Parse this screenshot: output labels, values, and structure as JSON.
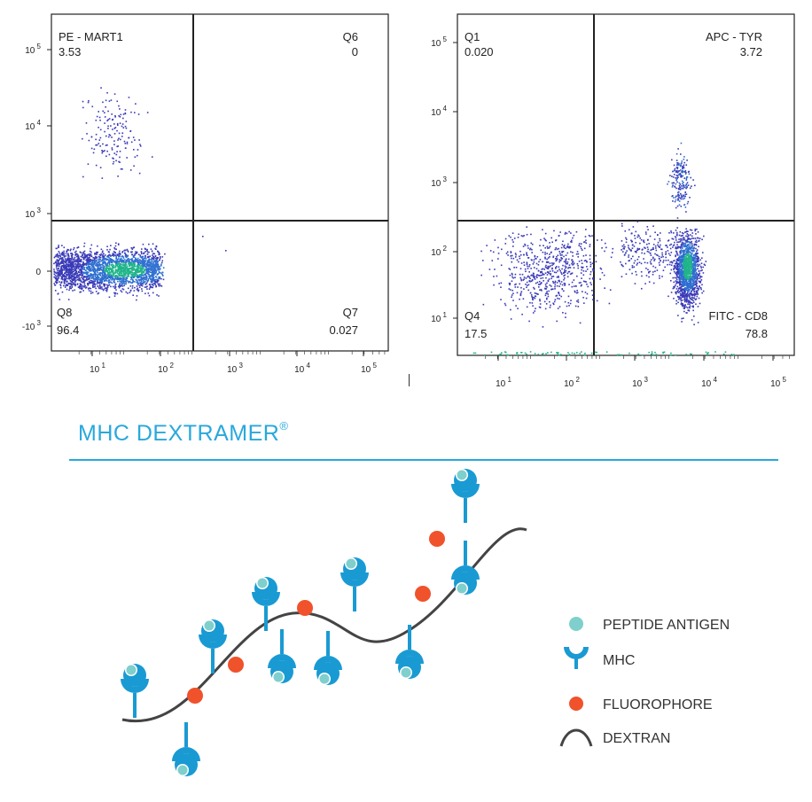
{
  "chart_data": [
    {
      "type": "scatter",
      "subtype": "flow-cytometry-density-dot-plot",
      "axis_scale": "biexponential (log with linear region near 0)",
      "x_ticks": [
        "10^1",
        "10^2",
        "10^3",
        "10^4",
        "10^5"
      ],
      "y_ticks": [
        "10^5",
        "10^4",
        "10^3",
        "0",
        "-10^3"
      ],
      "x_label_tick_text": [
        {
          "base": "10",
          "exp": "1"
        },
        {
          "base": "10",
          "exp": "2"
        },
        {
          "base": "10",
          "exp": "3"
        },
        {
          "base": "10",
          "exp": "4"
        },
        {
          "base": "10",
          "exp": "5"
        }
      ],
      "y_label_tick_text": [
        {
          "base": "10",
          "exp": "5"
        },
        {
          "base": "10",
          "exp": "4"
        },
        {
          "base": "10",
          "exp": "3"
        },
        {
          "base": "0",
          "exp": ""
        },
        {
          "base": "-10",
          "exp": "3"
        }
      ],
      "quadrants": [
        {
          "name": "PE - MART1",
          "value": "3.53",
          "position": "top-left"
        },
        {
          "name": "Q6",
          "value": "0",
          "position": "top-right"
        },
        {
          "name": "Q8",
          "value": "96.4",
          "position": "bottom-left"
        },
        {
          "name": "Q7",
          "value": "0.027",
          "position": "bottom-right"
        }
      ],
      "populations": [
        {
          "description": "main dense cluster",
          "x_range": [
            1,
            100
          ],
          "y_range": [
            -300,
            300
          ],
          "density": "high"
        },
        {
          "description": "sparse MART1+ cluster",
          "x_range": [
            10,
            100
          ],
          "y_range": [
            2000,
            30000
          ],
          "density": "low"
        }
      ]
    },
    {
      "type": "scatter",
      "subtype": "flow-cytometry-density-dot-plot",
      "axis_scale": "log",
      "x_ticks": [
        "10^1",
        "10^2",
        "10^3",
        "10^4",
        "10^5"
      ],
      "y_ticks": [
        "10^5",
        "10^4",
        "10^3",
        "10^2",
        "10^1"
      ],
      "x_label_tick_text": [
        {
          "base": "10",
          "exp": "1"
        },
        {
          "base": "10",
          "exp": "2"
        },
        {
          "base": "10",
          "exp": "3"
        },
        {
          "base": "10",
          "exp": "4"
        },
        {
          "base": "10",
          "exp": "5"
        }
      ],
      "y_label_tick_text": [
        {
          "base": "10",
          "exp": "5"
        },
        {
          "base": "10",
          "exp": "4"
        },
        {
          "base": "10",
          "exp": "3"
        },
        {
          "base": "10",
          "exp": "2"
        },
        {
          "base": "10",
          "exp": "1"
        }
      ],
      "quadrants": [
        {
          "name": "Q1",
          "value": "0.020",
          "position": "top-left"
        },
        {
          "name": "APC - TYR",
          "value": "3.72",
          "position": "top-right"
        },
        {
          "name": "Q4",
          "value": "17.5",
          "position": "bottom-left"
        },
        {
          "name": "FITC - CD8",
          "value": "78.8",
          "position": "bottom-right"
        }
      ],
      "populations": [
        {
          "description": "CD8+ dense cluster",
          "x_range": [
            4000,
            8000
          ],
          "y_range": [
            20,
            200
          ],
          "density": "high"
        },
        {
          "description": "TYR+ CD8+ cluster",
          "x_range": [
            4000,
            7000
          ],
          "y_range": [
            300,
            3000
          ],
          "density": "medium"
        },
        {
          "description": "CD8- scattered",
          "x_range": [
            10,
            200
          ],
          "y_range": [
            10,
            200
          ],
          "density": "low"
        }
      ]
    }
  ],
  "banner": {
    "title": "MHC DEXTRAMER",
    "registered_mark": "®",
    "accent_color": "#29a8dc"
  },
  "legend": {
    "items": [
      {
        "label": "PEPTIDE ANTIGEN",
        "icon": "peptide-antigen-icon",
        "color": "#7fcfcd"
      },
      {
        "label": "MHC",
        "icon": "mhc-icon",
        "color": "#1a9ad3"
      },
      {
        "label": "FLUOROPHORE",
        "icon": "fluorophore-icon",
        "color": "#f0522b"
      },
      {
        "label": "DEXTRAN",
        "icon": "dextran-icon",
        "color": "#444444"
      }
    ]
  },
  "colors": {
    "mhc": "#1a9ad3",
    "peptide": "#7fcfcd",
    "fluorophore": "#f0522b",
    "dextran": "#444444",
    "dot_low": "#3a3ab8",
    "dot_mid": "#2e6fd0",
    "dot_high": "#20b48a"
  }
}
